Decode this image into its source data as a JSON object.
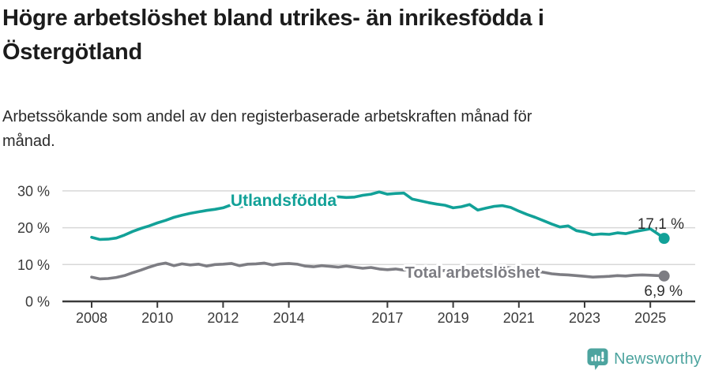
{
  "header": {
    "title_lines": [
      "Högre arbetslöshet bland utrikes- än inrikesfödda i",
      "Östergötland"
    ],
    "subtitle_lines": [
      "Arbetssökande som andel av den registerbaserade arbetskraften månad för",
      "månad."
    ]
  },
  "footer": {
    "brand": "Newsworthy",
    "logo_icon": "bar-chart-speech-bubble-icon",
    "brand_color": "#4da49f"
  },
  "chart_data": {
    "type": "line",
    "title": "Högre arbetslöshet bland utrikes- än inrikesfödda i Östergötland",
    "subtitle": "Arbetssökande som andel av den registerbaserade arbetskraften månad för månad.",
    "xlabel": "",
    "ylabel": "",
    "xlim": [
      2008,
      2025.6
    ],
    "ylim": [
      0,
      32
    ],
    "grid": "horizontal",
    "grid_color": "#d8d8d8",
    "axis_color": "#3a3a3a",
    "tick_label_color": "#3a3a3a",
    "x_ticks": [
      2008,
      2010,
      2012,
      2014,
      2017,
      2019,
      2021,
      2023,
      2025
    ],
    "x_tick_labels": [
      "2008",
      "2010",
      "2012",
      "2014",
      "2017",
      "2019",
      "2021",
      "2023",
      "2025"
    ],
    "y_ticks": [
      0,
      10,
      20,
      30
    ],
    "y_tick_labels": [
      "0 %",
      "10 %",
      "20 %",
      "30 %"
    ],
    "x": [
      2008,
      2008.25,
      2008.5,
      2008.75,
      2009,
      2009.25,
      2009.5,
      2009.75,
      2010,
      2010.25,
      2010.5,
      2010.75,
      2011,
      2011.25,
      2011.5,
      2011.75,
      2012,
      2012.25,
      2012.5,
      2012.75,
      2013,
      2013.25,
      2013.5,
      2013.75,
      2014,
      2014.25,
      2014.5,
      2014.75,
      2015,
      2015.25,
      2015.5,
      2015.75,
      2016,
      2016.25,
      2016.5,
      2016.75,
      2017,
      2017.25,
      2017.5,
      2017.75,
      2018,
      2018.25,
      2018.5,
      2018.75,
      2019,
      2019.25,
      2019.5,
      2019.75,
      2020,
      2020.25,
      2020.5,
      2020.75,
      2021,
      2021.25,
      2021.5,
      2021.75,
      2022,
      2022.25,
      2022.5,
      2022.75,
      2023,
      2023.25,
      2023.5,
      2023.75,
      2024,
      2024.25,
      2024.5,
      2024.75,
      2025,
      2025.25,
      2025.42
    ],
    "series": [
      {
        "name": "Utlandsfödda",
        "color": "#12a198",
        "end_label": "17,1 %",
        "end_value": 17.1,
        "values": [
          17.4,
          16.8,
          16.9,
          17.2,
          18.0,
          19.0,
          19.8,
          20.5,
          21.3,
          22.0,
          22.8,
          23.4,
          23.9,
          24.3,
          24.7,
          25.0,
          25.4,
          26.2,
          25.7,
          25.9,
          26.1,
          26.3,
          26.0,
          26.2,
          26.6,
          26.9,
          27.3,
          27.1,
          27.0,
          27.6,
          28.4,
          28.2,
          28.3,
          28.8,
          29.1,
          29.7,
          29.1,
          29.3,
          29.4,
          27.8,
          27.3,
          26.8,
          26.4,
          26.1,
          25.4,
          25.7,
          26.3,
          24.8,
          25.3,
          25.8,
          26.0,
          25.5,
          24.5,
          23.6,
          22.8,
          21.9,
          21.0,
          20.2,
          20.5,
          19.2,
          18.8,
          18.1,
          18.3,
          18.2,
          18.6,
          18.4,
          18.9,
          19.3,
          19.7,
          18.2,
          17.1
        ]
      },
      {
        "name": "Total arbetslöshet",
        "color": "#7d7d83",
        "end_label": "6,9 %",
        "end_value": 6.9,
        "values": [
          6.6,
          6.1,
          6.2,
          6.5,
          7.0,
          7.8,
          8.5,
          9.3,
          10.0,
          10.4,
          9.7,
          10.2,
          9.9,
          10.1,
          9.6,
          10.0,
          10.1,
          10.3,
          9.7,
          10.1,
          10.2,
          10.4,
          9.9,
          10.2,
          10.3,
          10.1,
          9.6,
          9.4,
          9.7,
          9.5,
          9.3,
          9.6,
          9.3,
          9.0,
          9.2,
          8.8,
          8.6,
          8.8,
          8.5,
          8.7,
          8.6,
          8.4,
          8.2,
          8.4,
          8.3,
          8.1,
          8.4,
          8.0,
          8.3,
          9.0,
          9.4,
          9.1,
          8.8,
          8.5,
          8.2,
          7.9,
          7.5,
          7.3,
          7.2,
          7.0,
          6.8,
          6.6,
          6.7,
          6.8,
          7.0,
          6.9,
          7.1,
          7.2,
          7.1,
          7.0,
          6.9
        ]
      }
    ],
    "legend_position": "inline-labels"
  }
}
